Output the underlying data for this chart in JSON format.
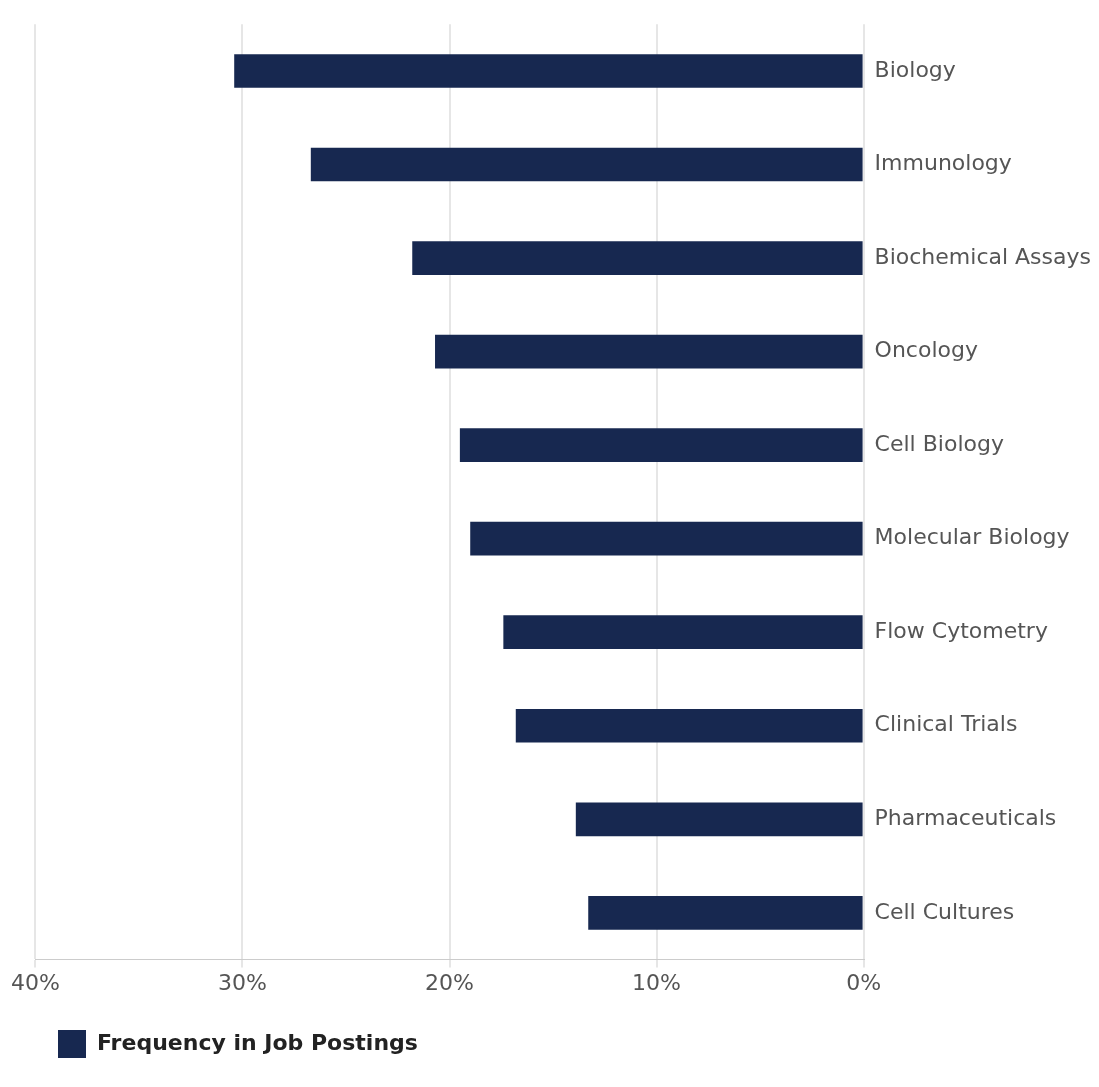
{
  "chart_data": {
    "type": "bar",
    "orientation": "horizontal",
    "categories": [
      "Biology",
      "Immunology",
      "Biochemical Assays",
      "Oncology",
      "Cell Biology",
      "Molecular Biology",
      "Flow Cytometry",
      "Clinical Trials",
      "Pharmaceuticals",
      "Cell Cultures"
    ],
    "series": [
      {
        "name": "Frequency in Job Postings",
        "color": "#172850",
        "values": [
          30.4,
          26.7,
          21.8,
          20.7,
          19.5,
          19.0,
          17.4,
          16.8,
          13.9,
          13.3
        ]
      }
    ],
    "xlim": [
      40,
      0
    ],
    "xticks": [
      {
        "value": 40,
        "label": "40%"
      },
      {
        "value": 30,
        "label": "30%"
      },
      {
        "value": 20,
        "label": "20%"
      },
      {
        "value": 10,
        "label": "10%"
      },
      {
        "value": 0,
        "label": "0%"
      }
    ],
    "grid": "x",
    "legend": "bottom"
  }
}
